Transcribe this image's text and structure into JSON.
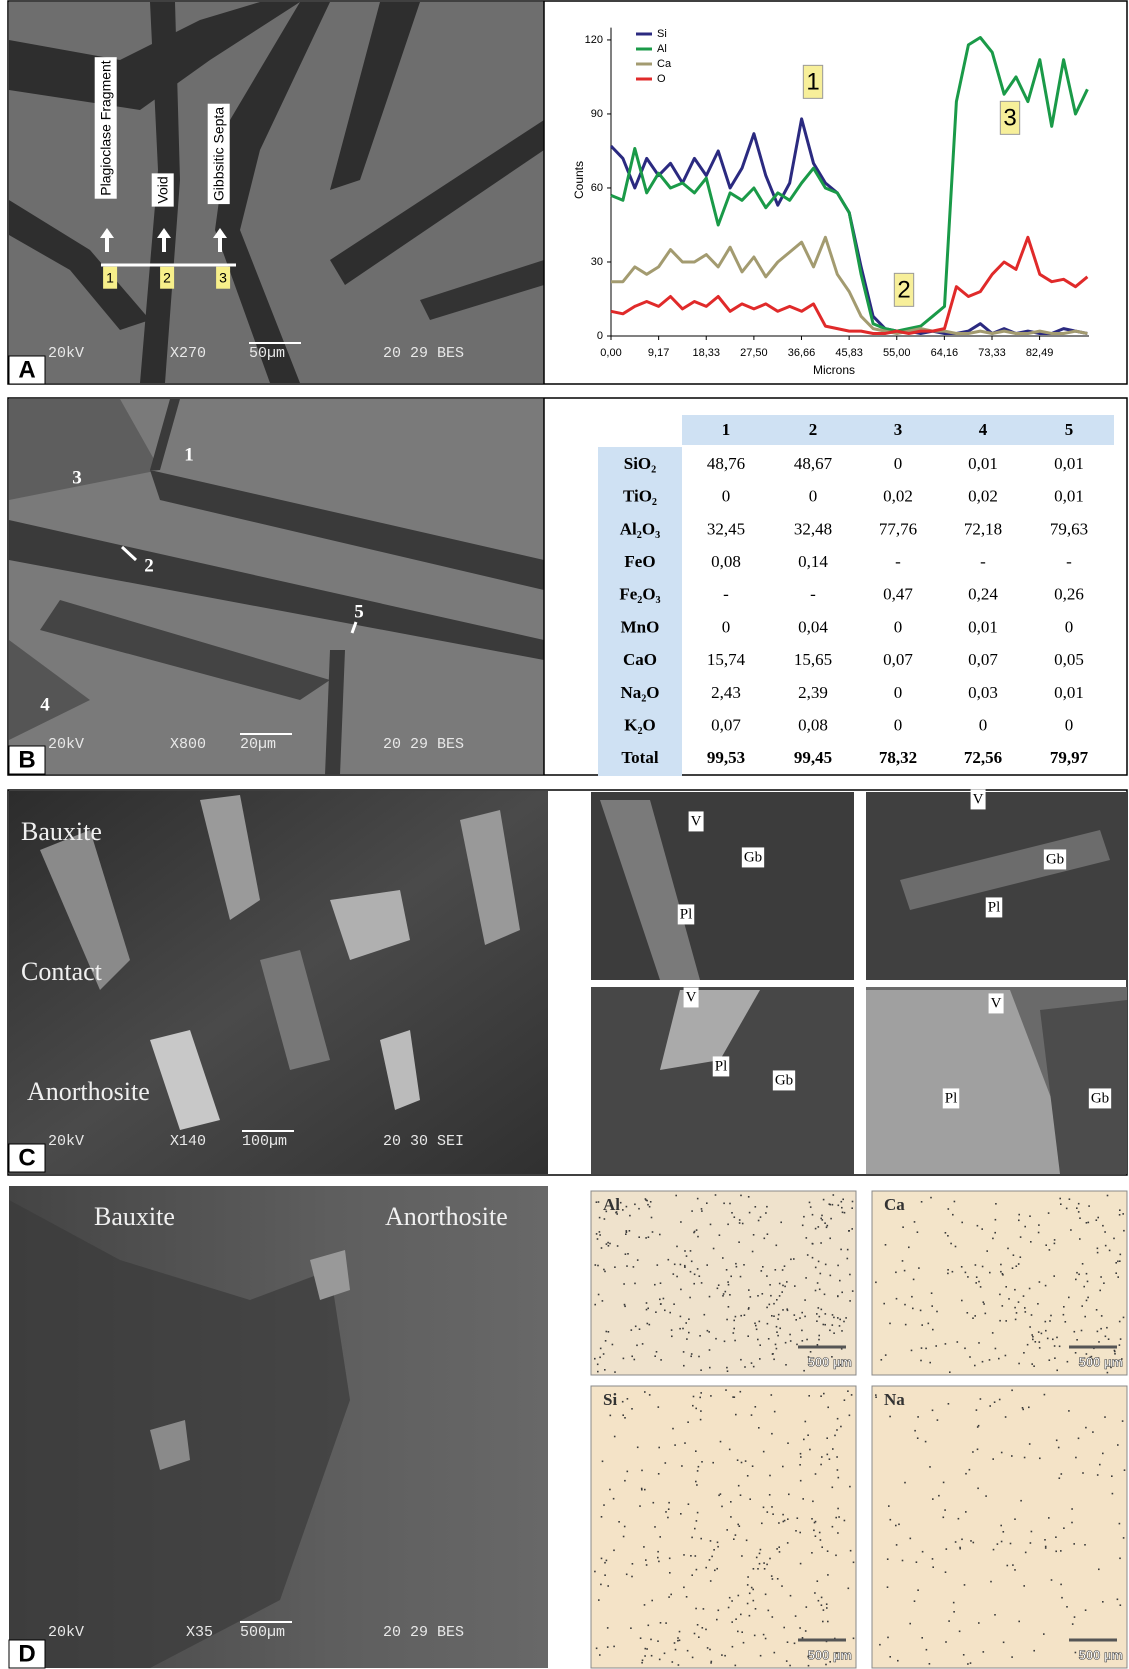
{
  "chart_data": {
    "type": "line",
    "xlabel": "Microns",
    "ylabel": "Counts",
    "x": [
      0,
      2.29,
      4.59,
      6.88,
      9.17,
      11.46,
      13.76,
      16.05,
      18.34,
      20.63,
      22.93,
      25.22,
      27.51,
      29.8,
      32.1,
      34.39,
      36.68,
      38.97,
      41.27,
      43.56,
      45.85,
      48.14,
      50.44,
      52.73,
      55.02,
      57.31,
      59.61,
      61.9,
      64.19,
      66.48,
      68.78,
      71.07,
      73.36,
      75.65,
      77.95,
      80.24,
      82.53,
      84.82,
      87.12,
      89.41,
      91.7
    ],
    "series": [
      {
        "name": "Si",
        "color": "#2b2a80",
        "values": [
          77,
          72,
          60,
          72,
          65,
          70,
          62,
          72,
          65,
          75,
          60,
          68,
          82,
          65,
          53,
          62,
          88,
          70,
          62,
          58,
          50,
          28,
          8,
          3,
          2,
          2,
          1,
          2,
          1,
          1,
          2,
          5,
          1,
          3,
          1,
          2,
          1,
          1,
          3,
          2,
          1
        ]
      },
      {
        "name": "Al",
        "color": "#1a9a48",
        "values": [
          57,
          55,
          76,
          58,
          66,
          60,
          62,
          58,
          64,
          45,
          58,
          55,
          60,
          52,
          58,
          55,
          62,
          68,
          60,
          58,
          50,
          25,
          5,
          3,
          2,
          3,
          4,
          8,
          12,
          95,
          118,
          121,
          115,
          98,
          105,
          95,
          112,
          85,
          112,
          90,
          100
        ]
      },
      {
        "name": "Ca",
        "color": "#a39b70",
        "values": [
          22,
          22,
          28,
          25,
          28,
          35,
          30,
          30,
          33,
          28,
          36,
          26,
          32,
          24,
          30,
          34,
          38,
          28,
          40,
          25,
          18,
          8,
          3,
          2,
          1,
          2,
          3,
          2,
          2,
          1,
          1,
          2,
          1,
          2,
          1,
          1,
          2,
          1,
          1,
          2,
          1
        ]
      },
      {
        "name": "O",
        "color": "#e02a2a",
        "values": [
          10,
          9,
          12,
          14,
          12,
          16,
          11,
          14,
          12,
          16,
          10,
          13,
          11,
          13,
          10,
          12,
          10,
          13,
          4,
          3,
          2,
          2,
          1,
          1,
          2,
          1,
          2,
          2,
          3,
          20,
          16,
          18,
          25,
          30,
          27,
          40,
          25,
          22,
          23,
          20,
          24
        ]
      }
    ],
    "xlim": [
      0,
      92
    ],
    "ylim": [
      0,
      125
    ],
    "xticks": [
      {
        "value": 0,
        "label": "0,00"
      },
      {
        "value": 9.17,
        "label": "9,17"
      },
      {
        "value": 18.33,
        "label": "18,33"
      },
      {
        "value": 27.5,
        "label": "27,50"
      },
      {
        "value": 36.66,
        "label": "36,66"
      },
      {
        "value": 45.83,
        "label": "45,83"
      },
      {
        "value": 55,
        "label": "55,00"
      },
      {
        "value": 64.16,
        "label": "64,16"
      },
      {
        "value": 73.33,
        "label": "73,33"
      },
      {
        "value": 82.49,
        "label": "82,49"
      }
    ],
    "yticks": [
      0,
      30,
      60,
      90,
      120
    ],
    "legend": "top-left",
    "annotations": [
      "1",
      "2",
      "3"
    ]
  },
  "panel_a": {
    "label": "A",
    "annotations": [
      "Plagioclase Fragment",
      "Void",
      "Gibbsitic Septa"
    ],
    "points": [
      "1",
      "2",
      "3"
    ],
    "footer": [
      "20kV",
      "X270",
      "50µm",
      "20 29 BES"
    ]
  },
  "panel_b": {
    "label": "B",
    "points": [
      "1",
      "2",
      "3",
      "4",
      "5"
    ],
    "footer": [
      "20kV",
      "X800",
      "20µm",
      "20 29 BES"
    ],
    "table": {
      "header": [
        "1",
        "2",
        "3",
        "4",
        "5"
      ],
      "rows": [
        [
          "SiO₂",
          "48,76",
          "48,67",
          "0",
          "0,01",
          "0,01"
        ],
        [
          "TiO₂",
          "0",
          "0",
          "0,02",
          "0,02",
          "0,01"
        ],
        [
          "Al₂O₃",
          "32,45",
          "32,48",
          "77,76",
          "72,18",
          "79,63"
        ],
        [
          "FeO",
          "0,08",
          "0,14",
          "-",
          "-",
          "-"
        ],
        [
          "Fe₂O₃",
          "-",
          "-",
          "0,47",
          "0,24",
          "0,26"
        ],
        [
          "MnO",
          "0",
          "0,04",
          "0",
          "0,01",
          "0"
        ],
        [
          "CaO",
          "15,74",
          "15,65",
          "0,07",
          "0,07",
          "0,05"
        ],
        [
          "Na₂O",
          "2,43",
          "2,39",
          "0",
          "0,03",
          "0,01"
        ],
        [
          "K₂O",
          "0,07",
          "0,08",
          "0",
          "0",
          "0"
        ],
        [
          "Total",
          "99,53",
          "99,45",
          "78,32",
          "72,56",
          "79,97"
        ]
      ]
    }
  },
  "panel_c": {
    "label": "C",
    "zones": [
      "Bauxite",
      "Contact",
      "Anorthosite"
    ],
    "footer": [
      "20kV",
      "X140",
      "100µm",
      "20 30 SEI"
    ],
    "insets": [
      [
        "V",
        "Gb",
        "Pl"
      ],
      [
        "V",
        "Gb",
        "Pl"
      ],
      [
        "V",
        "Pl",
        "Gb"
      ],
      [
        "V",
        "Pl",
        "Gb"
      ]
    ]
  },
  "panel_d": {
    "label": "D",
    "zones": [
      "Bauxite",
      "Anorthosite"
    ],
    "footer": [
      "20kV",
      "X35",
      "500µm",
      "20 29 BES"
    ],
    "maps": [
      {
        "element": "Al",
        "scale": "500 µm"
      },
      {
        "element": "Ca",
        "scale": "500 µm"
      },
      {
        "element": "Si",
        "scale": "500 µm"
      },
      {
        "element": "Na",
        "scale": "500 µm"
      }
    ]
  }
}
